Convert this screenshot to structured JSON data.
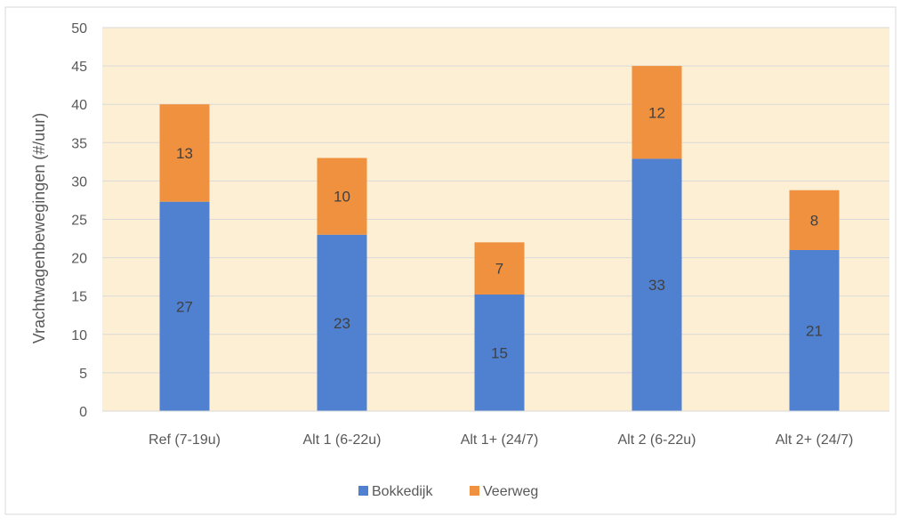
{
  "chart_data": {
    "type": "bar",
    "stacked": true,
    "categories": [
      "Ref (7-19u)",
      "Alt 1 (6-22u)",
      "Alt 1+ (24/7)",
      "Alt 2 (6-22u)",
      "Alt 2+ (24/7)"
    ],
    "series": [
      {
        "name": "Bokkedijk",
        "values": [
          27,
          23,
          15,
          33,
          21
        ],
        "totals": [
          27.3,
          23,
          15.2,
          32.9,
          21
        ],
        "color": "#4f81d0"
      },
      {
        "name": "Veerweg",
        "values": [
          13,
          10,
          7,
          12,
          8
        ],
        "totals": [
          12.7,
          10,
          6.8,
          12.1,
          7.8
        ],
        "color": "#f0913f"
      }
    ],
    "ylabel": "Vrachtwagenbewegingen (#/uur)",
    "xlabel": "",
    "ylim": [
      0,
      50
    ],
    "yticks": [
      0,
      5,
      10,
      15,
      20,
      25,
      30,
      35,
      40,
      45,
      50
    ],
    "grid": true,
    "legend_position": "bottom",
    "plot_background": "#fdefd3"
  }
}
